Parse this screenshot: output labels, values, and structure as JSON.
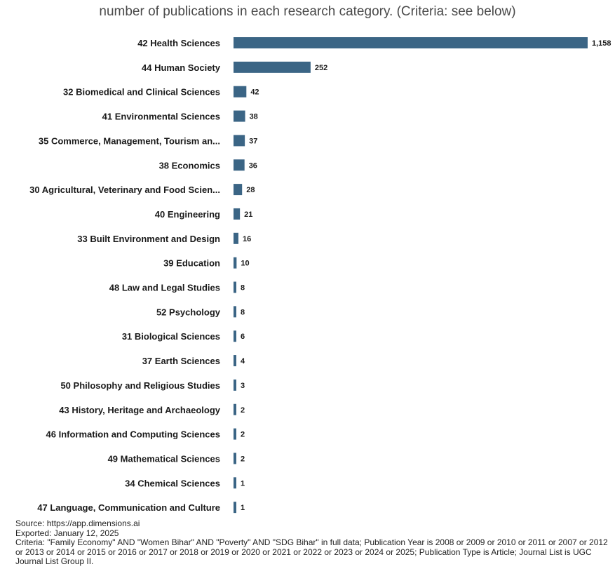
{
  "chart_data": {
    "type": "bar",
    "orientation": "horizontal",
    "title": "number of publications in each research category. (Criteria: see below)",
    "bar_color": "#3b6585",
    "categories": [
      "42 Health Sciences",
      "44 Human Society",
      "32 Biomedical and Clinical Sciences",
      "41 Environmental Sciences",
      "35 Commerce, Management, Tourism an...",
      "38 Economics",
      "30 Agricultural, Veterinary and Food Scien...",
      "40 Engineering",
      "33 Built Environment and Design",
      "39 Education",
      "48 Law and Legal Studies",
      "52 Psychology",
      "31 Biological Sciences",
      "37 Earth Sciences",
      "50 Philosophy and Religious Studies",
      "43 History, Heritage and Archaeology",
      "46 Information and Computing Sciences",
      "49 Mathematical Sciences",
      "34 Chemical Sciences",
      "47 Language, Communication and Culture"
    ],
    "values": [
      1158,
      252,
      42,
      38,
      37,
      36,
      28,
      21,
      16,
      10,
      8,
      8,
      6,
      4,
      3,
      2,
      2,
      2,
      1,
      1
    ],
    "value_labels": [
      "1,158",
      "252",
      "42",
      "38",
      "37",
      "36",
      "28",
      "21",
      "16",
      "10",
      "8",
      "8",
      "6",
      "4",
      "3",
      "2",
      "2",
      "2",
      "1",
      "1"
    ]
  },
  "footer": {
    "source": "Source: https://app.dimensions.ai",
    "exported": "Exported: January 12, 2025",
    "criteria": "Criteria: \"Family Economy\" AND \"Women Bihar\" AND \"Poverty\" AND \"SDG Bihar\" in full data; Publication Year is 2008 or 2009 or 2010 or 2011 or 2007 or 2012 or 2013 or 2014 or 2015 or 2016 or 2017 or 2018 or 2019 or 2020 or 2021 or 2022 or 2023 or 2024 or 2025; Publication Type is Article; Journal List is UGC Journal List Group II."
  }
}
